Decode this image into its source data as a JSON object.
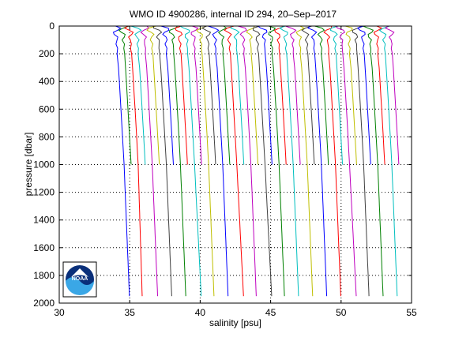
{
  "chart_data": {
    "type": "line",
    "title": "WMO ID 4900286, internal ID 294, 20–Sep–2017",
    "xlabel": "salinity [psu]",
    "ylabel": "pressure [dbar]",
    "xlim": [
      30,
      55
    ],
    "ylim": [
      0,
      2000
    ],
    "y_reversed": true,
    "xticks": [
      "30",
      "35",
      "40",
      "45",
      "50",
      "55"
    ],
    "yticks": [
      "0",
      "200",
      "400",
      "600",
      "800",
      "1000",
      "1200",
      "1400",
      "1600",
      "1800",
      "2000"
    ],
    "grid": "dotted horizontal at y ticks; dotted vertical at x = 35, 40, 45, 50",
    "logo": "NOAA",
    "series_offset_psu": 0.5,
    "series_colors": [
      "#0000ff",
      "#008000",
      "#ff0000",
      "#00bfbf",
      "#bf00bf",
      "#bfbf00",
      "#404040"
    ],
    "series": [
      {
        "surface": 34.0,
        "at1000": 34.6,
        "at2000": 35.0,
        "deep": true
      },
      {
        "surface": 34.5,
        "at1000": 35.1,
        "at2000": null,
        "deep": false
      },
      {
        "surface": 35.0,
        "at1000": 35.6,
        "at2000": 35.9,
        "deep": true
      },
      {
        "surface": 35.5,
        "at1000": 36.1,
        "at2000": null,
        "deep": false
      },
      {
        "surface": 36.0,
        "at1000": 36.6,
        "at2000": 37.0,
        "deep": true
      },
      {
        "surface": 36.5,
        "at1000": 37.1,
        "at2000": null,
        "deep": false
      },
      {
        "surface": 37.0,
        "at1000": 37.6,
        "at2000": 38.0,
        "deep": true
      },
      {
        "surface": 37.5,
        "at1000": 38.1,
        "at2000": null,
        "deep": false
      },
      {
        "surface": 38.0,
        "at1000": 38.6,
        "at2000": 39.0,
        "deep": true
      },
      {
        "surface": 38.5,
        "at1000": 39.1,
        "at2000": null,
        "deep": false
      },
      {
        "surface": 39.0,
        "at1000": 39.6,
        "at2000": 40.1,
        "deep": true
      },
      {
        "surface": 39.5,
        "at1000": 40.1,
        "at2000": null,
        "deep": false
      },
      {
        "surface": 40.0,
        "at1000": 40.6,
        "at2000": 41.0,
        "deep": true
      },
      {
        "surface": 40.5,
        "at1000": 41.1,
        "at2000": null,
        "deep": false
      },
      {
        "surface": 41.0,
        "at1000": 41.6,
        "at2000": 42.0,
        "deep": true
      },
      {
        "surface": 41.5,
        "at1000": 42.1,
        "at2000": null,
        "deep": false
      },
      {
        "surface": 42.0,
        "at1000": 42.6,
        "at2000": 43.1,
        "deep": true
      },
      {
        "surface": 42.5,
        "at1000": 43.1,
        "at2000": null,
        "deep": false
      },
      {
        "surface": 43.0,
        "at1000": 43.6,
        "at2000": 44.0,
        "deep": true
      },
      {
        "surface": 43.5,
        "at1000": 44.1,
        "at2000": null,
        "deep": false
      },
      {
        "surface": 44.0,
        "at1000": 44.6,
        "at2000": 45.1,
        "deep": true
      },
      {
        "surface": 44.5,
        "at1000": 45.1,
        "at2000": null,
        "deep": false
      },
      {
        "surface": 45.0,
        "at1000": 45.6,
        "at2000": 46.0,
        "deep": true
      },
      {
        "surface": 45.5,
        "at1000": 46.1,
        "at2000": null,
        "deep": false
      },
      {
        "surface": 46.0,
        "at1000": 46.6,
        "at2000": 47.0,
        "deep": true
      },
      {
        "surface": 46.5,
        "at1000": 47.1,
        "at2000": null,
        "deep": false
      },
      {
        "surface": 47.0,
        "at1000": 47.6,
        "at2000": 48.0,
        "deep": true
      },
      {
        "surface": 47.5,
        "at1000": 48.1,
        "at2000": null,
        "deep": false
      },
      {
        "surface": 48.0,
        "at1000": 48.6,
        "at2000": 49.0,
        "deep": true
      },
      {
        "surface": 48.5,
        "at1000": 49.1,
        "at2000": null,
        "deep": false
      },
      {
        "surface": 49.0,
        "at1000": 49.6,
        "at2000": 50.0,
        "deep": true
      },
      {
        "surface": 49.5,
        "at1000": 50.1,
        "at2000": null,
        "deep": false
      },
      {
        "surface": 50.0,
        "at1000": 50.6,
        "at2000": 51.1,
        "deep": true
      },
      {
        "surface": 50.5,
        "at1000": 51.1,
        "at2000": null,
        "deep": false
      },
      {
        "surface": 51.0,
        "at1000": 51.6,
        "at2000": 52.0,
        "deep": true
      },
      {
        "surface": 51.5,
        "at1000": 52.1,
        "at2000": null,
        "deep": false
      },
      {
        "surface": 52.0,
        "at1000": 52.6,
        "at2000": 53.0,
        "deep": true
      },
      {
        "surface": 52.5,
        "at1000": 53.1,
        "at2000": null,
        "deep": false
      },
      {
        "surface": 53.0,
        "at1000": 53.6,
        "at2000": 54.0,
        "deep": true
      },
      {
        "surface": 53.5,
        "at1000": 54.1,
        "at2000": null,
        "deep": false
      }
    ]
  }
}
